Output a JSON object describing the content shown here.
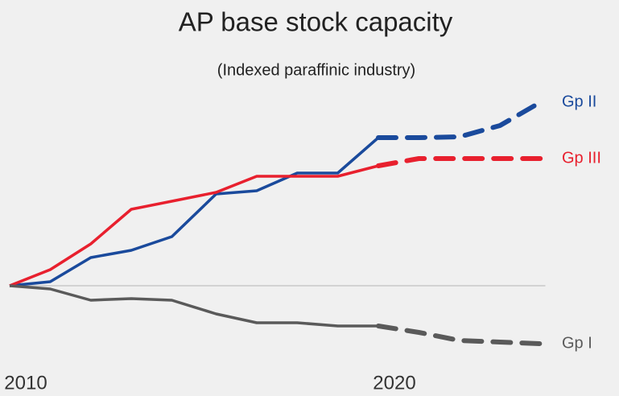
{
  "chart_data": {
    "type": "line",
    "title": "AP base stock capacity",
    "subtitle": "(Indexed paraffinic industry)",
    "x": [
      2010,
      2011.1,
      2012.2,
      2013.3,
      2014.4,
      2015.6,
      2016.7,
      2017.8,
      2018.9,
      2020,
      2021.1,
      2022.2,
      2023.3,
      2024.4
    ],
    "xlim": [
      2010,
      2024.4
    ],
    "xticks": [
      2010,
      2020
    ],
    "ylim": [
      -10,
      25
    ],
    "forecast_from": 2020,
    "series": [
      {
        "name": "Gp II",
        "color": "#1a4a9c",
        "values": [
          0,
          0.5,
          3.5,
          4.4,
          6.1,
          11.4,
          11.8,
          14,
          14,
          18.4,
          18.4,
          18.5,
          19.9,
          22.8
        ]
      },
      {
        "name": "Gp III",
        "color": "#e8202e",
        "values": [
          0,
          2,
          5.2,
          9.5,
          10.5,
          11.6,
          13.6,
          13.6,
          13.6,
          14.9,
          15.8,
          15.8,
          15.8,
          15.8
        ]
      },
      {
        "name": "Gp I",
        "color": "#5a5a5a",
        "values": [
          0,
          -0.4,
          -1.8,
          -1.6,
          -1.8,
          -3.5,
          -4.6,
          -4.6,
          -5,
          -5,
          -5.8,
          -6.8,
          -7,
          -7.2
        ]
      }
    ]
  }
}
